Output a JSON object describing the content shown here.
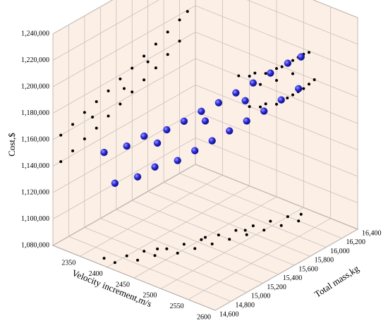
{
  "chart_data": {
    "type": "scatter3d",
    "x_label": "Velocity increment,m/s",
    "y_label": "Total mass,kg",
    "z_label": "Cost,$",
    "color": "#2222cc",
    "projection_color": "#000000",
    "wall_color": "#fcefe6",
    "grid": true,
    "xlim": [
      2300,
      2600
    ],
    "xticks": [
      2350,
      2400,
      2450,
      2500,
      2550,
      2600
    ],
    "ylim": [
      14600,
      16400
    ],
    "yticks": [
      {
        "value": 14600,
        "label": "14,600"
      },
      {
        "value": 14800,
        "label": "14,800"
      },
      {
        "value": 15000,
        "label": "15,000"
      },
      {
        "value": 15200,
        "label": "15,200"
      },
      {
        "value": 15400,
        "label": "15,400"
      },
      {
        "value": 15600,
        "label": "15,600"
      },
      {
        "value": 15800,
        "label": "15,800"
      },
      {
        "value": 16000,
        "label": "16,000"
      },
      {
        "value": 16200,
        "label": "16,200"
      },
      {
        "value": 16400,
        "label": "16,400"
      }
    ],
    "zlim": [
      1080000,
      1240000
    ],
    "zticks": [
      {
        "value": 1080000,
        "label": "1,080,000"
      },
      {
        "value": 1100000,
        "label": "1,100,000"
      },
      {
        "value": 1120000,
        "label": "1,120,000"
      },
      {
        "value": 1140000,
        "label": "1,140,000"
      },
      {
        "value": 1160000,
        "label": "1,160,000"
      },
      {
        "value": 1180000,
        "label": "1,180,000"
      },
      {
        "value": 1200000,
        "label": "1,200,000"
      },
      {
        "value": 1220000,
        "label": "1,220,000"
      },
      {
        "value": 1240000,
        "label": "1,240,000"
      }
    ],
    "x": [
      2380,
      2400,
      2410,
      2430,
      2440,
      2450,
      2460,
      2470,
      2480,
      2490,
      2500,
      2510,
      2400,
      2420,
      2430,
      2450,
      2460,
      2470,
      2480,
      2490,
      2500,
      2510,
      2520,
      2420,
      2450,
      2480
    ],
    "y": [
      14700,
      14850,
      15000,
      15150,
      15300,
      15450,
      15600,
      15750,
      15900,
      16050,
      16200,
      16300,
      14700,
      14850,
      15000,
      15150,
      15300,
      15450,
      15600,
      15750,
      15900,
      16050,
      16200,
      15100,
      15500,
      15800
    ],
    "z": [
      1160000,
      1163000,
      1167000,
      1170000,
      1173000,
      1177000,
      1180000,
      1184000,
      1188000,
      1192000,
      1196000,
      1199000,
      1140000,
      1143000,
      1147000,
      1150000,
      1154000,
      1158000,
      1162000,
      1166000,
      1170000,
      1175000,
      1180000,
      1160000,
      1168000,
      1178000
    ]
  }
}
